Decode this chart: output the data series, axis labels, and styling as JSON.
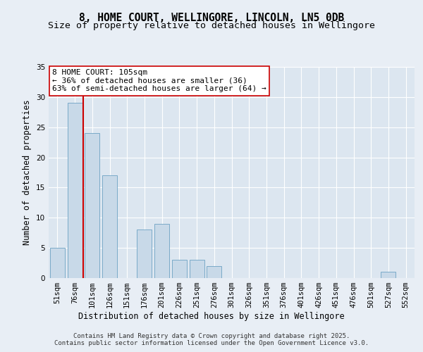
{
  "title1": "8, HOME COURT, WELLINGORE, LINCOLN, LN5 0DB",
  "title2": "Size of property relative to detached houses in Wellingore",
  "xlabel": "Distribution of detached houses by size in Wellingore",
  "ylabel": "Number of detached properties",
  "categories": [
    "51sqm",
    "76sqm",
    "101sqm",
    "126sqm",
    "151sqm",
    "176sqm",
    "201sqm",
    "226sqm",
    "251sqm",
    "276sqm",
    "301sqm",
    "326sqm",
    "351sqm",
    "376sqm",
    "401sqm",
    "426sqm",
    "451sqm",
    "476sqm",
    "501sqm",
    "527sqm",
    "552sqm"
  ],
  "values": [
    5,
    29,
    24,
    17,
    0,
    8,
    9,
    3,
    3,
    2,
    0,
    0,
    0,
    0,
    0,
    0,
    0,
    0,
    0,
    1,
    0
  ],
  "bar_color": "#c8d9e8",
  "bar_edge_color": "#7aaac8",
  "vline_x_index": 2,
  "vline_color": "#cc0000",
  "annotation_text": "8 HOME COURT: 105sqm\n← 36% of detached houses are smaller (36)\n63% of semi-detached houses are larger (64) →",
  "annotation_box_color": "#ffffff",
  "annotation_box_edge": "#cc0000",
  "ylim": [
    0,
    35
  ],
  "yticks": [
    0,
    5,
    10,
    15,
    20,
    25,
    30,
    35
  ],
  "bg_color": "#e8eef5",
  "plot_bg_color": "#dce6f0",
  "grid_color": "#ffffff",
  "footer_text": "Contains HM Land Registry data © Crown copyright and database right 2025.\nContains public sector information licensed under the Open Government Licence v3.0.",
  "title1_fontsize": 10.5,
  "title2_fontsize": 9.5,
  "axis_label_fontsize": 8.5,
  "tick_fontsize": 7.5,
  "annotation_fontsize": 8,
  "footer_fontsize": 6.5
}
